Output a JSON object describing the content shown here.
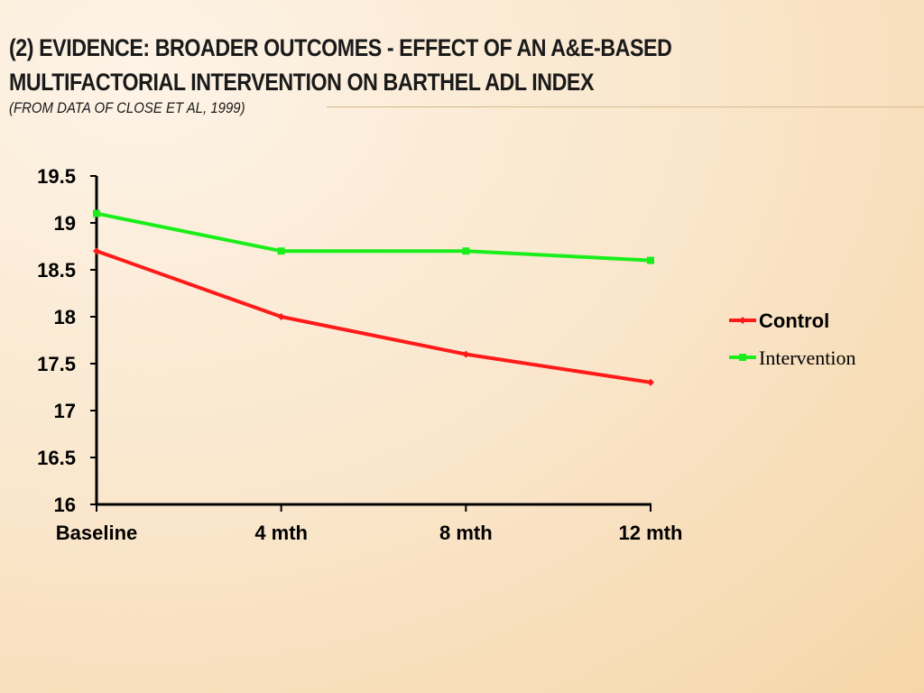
{
  "header": {
    "title_line1": "(2) Evidence:  Broader outcomes - Effect of an A&E-based",
    "title_line2": "multifactorial intervention on Barthel ADL Index",
    "subtitle": "(from data of Close et al, 1999)"
  },
  "chart_data": {
    "type": "line",
    "title": "",
    "xlabel": "",
    "ylabel": "",
    "categories": [
      "Baseline",
      "4 mth",
      "8 mth",
      "12 mth"
    ],
    "ylim": [
      16,
      19.5
    ],
    "yticks": [
      "16",
      "16.5",
      "17",
      "17.5",
      "18",
      "18.5",
      "19",
      "19.5"
    ],
    "grid": false,
    "legend": "right",
    "series": [
      {
        "name": "Control",
        "values": [
          18.7,
          18.0,
          17.6,
          17.3
        ],
        "color": "#ff1a1a",
        "marker": "diamond"
      },
      {
        "name": "Intervention",
        "values": [
          19.1,
          18.7,
          18.7,
          18.6
        ],
        "color": "#1aee1a",
        "marker": "square"
      }
    ]
  }
}
